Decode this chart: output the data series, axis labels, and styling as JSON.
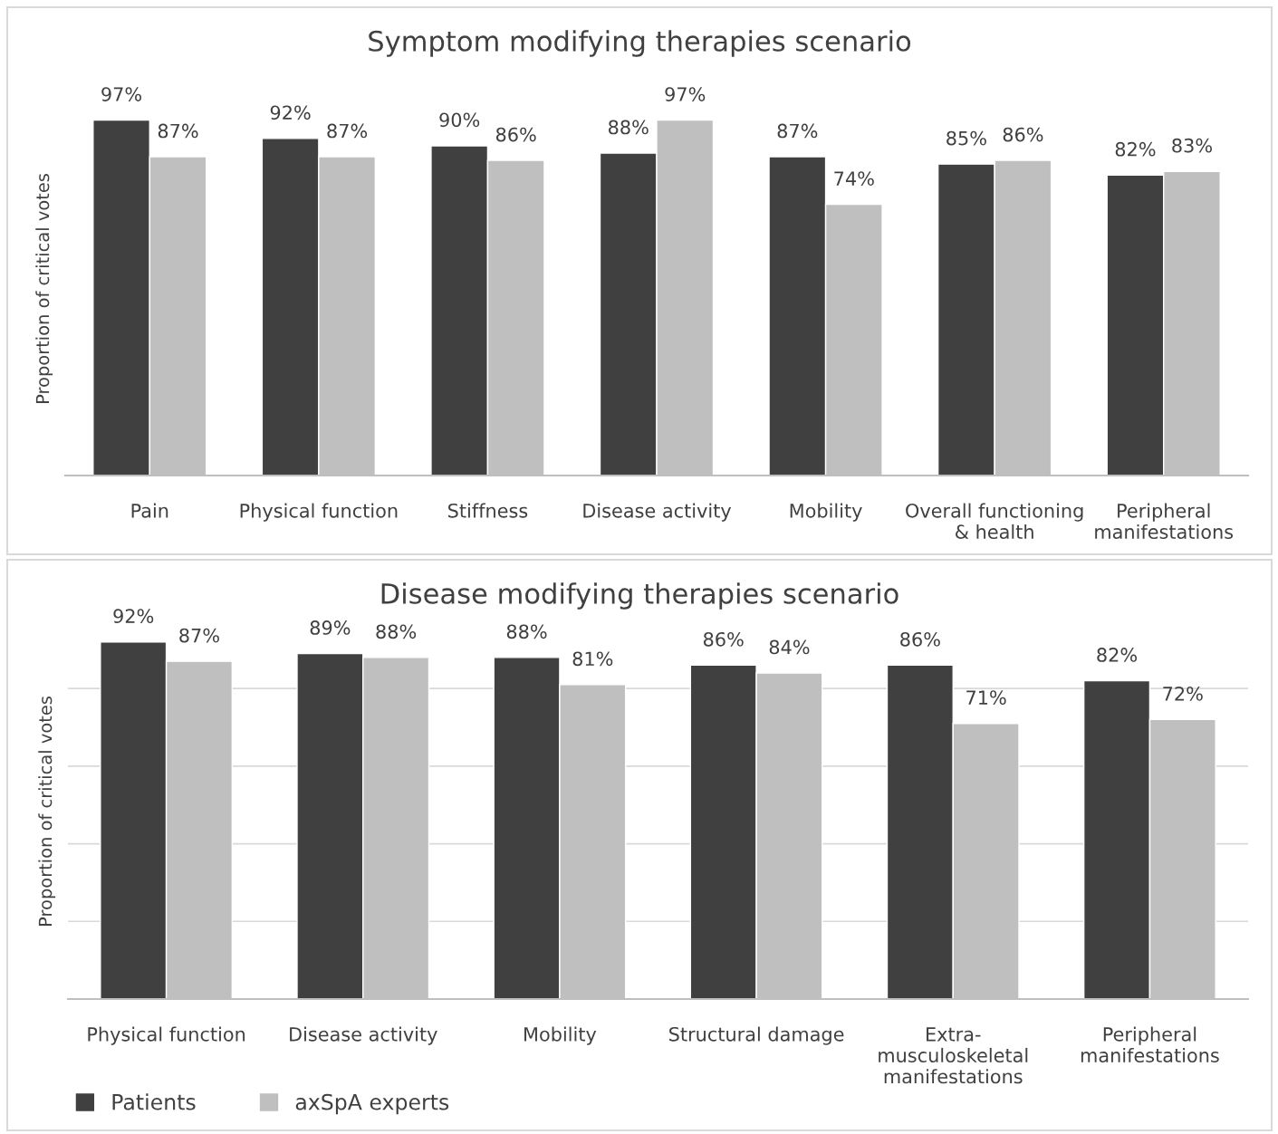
{
  "chart_data": [
    {
      "type": "bar",
      "title": "Symptom modifying therapies scenario",
      "ylabel": "Proportion of critical votes",
      "categories": [
        "Pain",
        "Physical function",
        "Stiffness",
        "Disease activity",
        "Mobility",
        "Overall functioning\n& health",
        "Peripheral\nmanifestations"
      ],
      "series": [
        {
          "color": "#404040",
          "values": [
            97,
            92,
            90,
            88,
            87,
            85,
            82
          ],
          "value_labels": [
            "97%",
            "92%",
            "90%",
            "88%",
            "87%",
            "85%",
            "82%"
          ]
        },
        {
          "color": "#bfbfbf",
          "values": [
            87,
            87,
            86,
            97,
            74,
            86,
            83
          ],
          "value_labels": [
            "87%",
            "87%",
            "86%",
            "97%",
            "74%",
            "86%",
            "83%"
          ]
        }
      ],
      "tick_labels": "x",
      "grid": false,
      "legend": false
    },
    {
      "type": "bar",
      "title": "Disease modifying therapies scenario",
      "ylabel": "Proportion of critical votes",
      "categories": [
        "Physical function",
        "Disease activity",
        "Mobility",
        "Structural damage",
        "Extra-\nmusculoskeletal\nmanifestations",
        "Peripheral\nmanifestations"
      ],
      "series": [
        {
          "name": "Patients",
          "color": "#404040",
          "values": [
            92,
            89,
            88,
            86,
            86,
            82
          ],
          "value_labels": [
            "92%",
            "89%",
            "88%",
            "86%",
            "86%",
            "82%"
          ]
        },
        {
          "name": "axSpA experts",
          "color": "#bfbfbf",
          "values": [
            87,
            88,
            81,
            84,
            71,
            72
          ],
          "value_labels": [
            "87%",
            "88%",
            "81%",
            "84%",
            "71%",
            "72%"
          ]
        }
      ],
      "yticks": [
        {
          "value": 20,
          "label": null
        },
        {
          "value": 40,
          "label": null
        },
        {
          "value": 60,
          "label": null
        },
        {
          "value": 80,
          "label": null
        }
      ],
      "tick_labels": "x",
      "grid": "y",
      "legend": "bottom left"
    }
  ]
}
